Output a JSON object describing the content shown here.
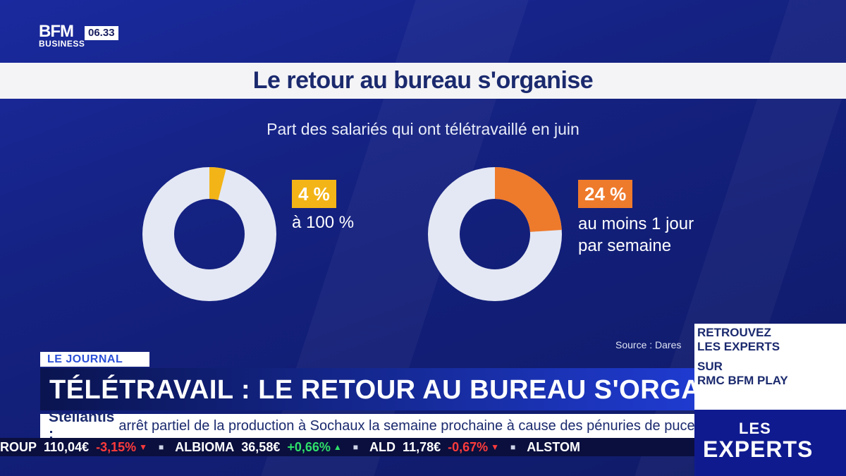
{
  "channel": {
    "logo_top": "BFM",
    "logo_bottom": "BUSINESS",
    "time": "06.33"
  },
  "graphic": {
    "title": "Le retour au bureau s'organise",
    "subtitle": "Part des salariés qui ont télétravaillé en juin",
    "source": "Source : Dares",
    "chart_data": [
      {
        "type": "pie",
        "style": "donut",
        "values": [
          4,
          96
        ],
        "highlight_color": "#f3b417",
        "rest_color": "#e4e8f4",
        "badge": "4 %",
        "label_lines": [
          "à 100 %"
        ]
      },
      {
        "type": "pie",
        "style": "donut",
        "values": [
          24,
          76
        ],
        "highlight_color": "#ee7a2c",
        "rest_color": "#e4e8f4",
        "badge": "24 %",
        "label_lines": [
          "au moins 1 jour",
          "par semaine"
        ]
      }
    ]
  },
  "lower_third": {
    "tag": "LE JOURNAL",
    "headline": "TÉLÉTRAVAIL : LE RETOUR AU BUREAU S'ORGANISE",
    "news_key": "Stellantis :",
    "news_text": "arrêt partiel de la production à Sochaux la semaine prochaine à cause des pénuries de puces."
  },
  "stocks": [
    {
      "name": "ROUP",
      "price": "110,04€",
      "change": "-3,15%",
      "color": "#ff3b3b",
      "arrow": "▼"
    },
    {
      "name": "ALBIOMA",
      "price": "36,58€",
      "change": "+0,66%",
      "color": "#2ee06a",
      "arrow": "▲"
    },
    {
      "name": "ALD",
      "price": "11,78€",
      "change": "-0,67%",
      "color": "#ff3b3b",
      "arrow": "▼"
    },
    {
      "name": "ALSTOM",
      "price": "",
      "change": "",
      "color": "#ffffff",
      "arrow": ""
    }
  ],
  "promo": {
    "line1": "RETROUVEZ",
    "line2": "LES EXPERTS",
    "line3": "SUR",
    "line4": "RMC BFM PLAY"
  },
  "show": {
    "line1": "LES",
    "line2": "EXPERTS"
  }
}
